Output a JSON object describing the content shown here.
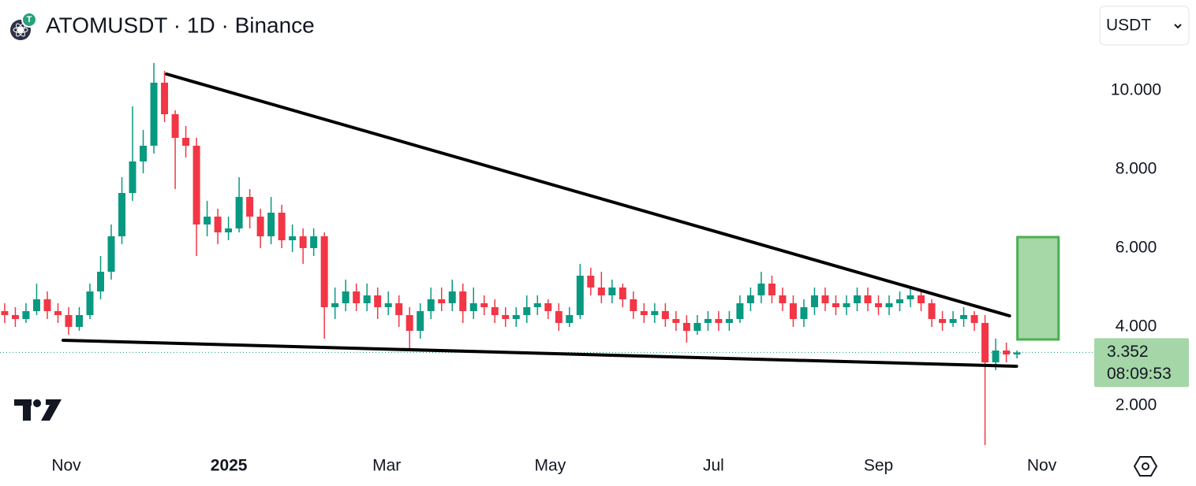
{
  "chart_data": {
    "type": "candlestick",
    "title": "ATOMUSDT · 1D · Binance",
    "currency": "USDT",
    "up_color": "#089981",
    "down_color": "#f23645",
    "open": [
      4.4,
      4.3,
      4.2,
      4.4,
      4.7,
      4.4,
      4.3,
      4.0,
      4.3,
      4.9,
      5.4,
      6.3,
      7.4,
      8.2,
      8.6,
      10.2,
      9.4,
      8.8,
      8.6,
      6.6,
      6.8,
      6.4,
      6.5,
      7.3,
      6.8,
      6.3,
      6.9,
      6.2,
      6.3,
      6.0,
      6.3,
      4.5,
      4.6,
      4.9,
      4.6,
      4.8,
      4.5,
      4.6,
      4.3,
      3.9,
      4.4,
      4.7,
      4.6,
      4.9,
      4.4,
      4.6,
      4.5,
      4.3,
      4.2,
      4.3,
      4.5,
      4.6,
      4.4,
      4.1,
      4.3,
      5.3,
      5.0,
      4.8,
      5.0,
      4.7,
      4.4,
      4.3,
      4.4,
      4.2,
      4.1,
      3.9,
      4.1,
      4.2,
      4.1,
      4.2,
      4.6,
      4.8,
      5.1,
      4.8,
      4.6,
      4.2,
      4.5,
      4.8,
      4.6,
      4.5,
      4.6,
      4.8,
      4.6,
      4.5,
      4.6,
      4.7,
      4.8,
      4.6,
      4.2,
      4.1,
      4.2,
      4.3,
      4.1,
      3.1,
      3.4,
      3.3
    ],
    "high": [
      4.6,
      4.5,
      4.6,
      5.1,
      4.9,
      4.6,
      4.5,
      4.5,
      5.1,
      5.8,
      6.6,
      7.8,
      9.6,
      9.0,
      10.7,
      10.5,
      9.5,
      9.1,
      8.8,
      7.2,
      7.0,
      6.8,
      7.8,
      7.5,
      7.0,
      7.3,
      7.1,
      6.6,
      6.5,
      6.5,
      6.4,
      5.0,
      5.2,
      5.1,
      5.1,
      5.0,
      4.9,
      4.8,
      4.5,
      4.6,
      5.0,
      5.0,
      5.2,
      5.1,
      5.0,
      4.8,
      4.7,
      4.5,
      4.5,
      4.8,
      4.8,
      4.7,
      4.6,
      4.5,
      5.6,
      5.5,
      5.4,
      5.2,
      5.1,
      4.9,
      4.6,
      4.6,
      4.6,
      4.4,
      4.3,
      4.3,
      4.4,
      4.4,
      4.4,
      4.8,
      5.0,
      5.4,
      5.3,
      5.0,
      4.8,
      4.7,
      5.0,
      5.0,
      4.8,
      4.8,
      5.0,
      5.0,
      4.8,
      4.8,
      4.9,
      5.0,
      4.9,
      4.7,
      4.4,
      4.4,
      4.5,
      4.4,
      4.3,
      3.7,
      3.6,
      3.4
    ],
    "low": [
      4.1,
      4.0,
      4.1,
      4.3,
      4.2,
      4.1,
      3.8,
      3.9,
      4.2,
      4.7,
      5.2,
      6.1,
      7.2,
      7.9,
      8.4,
      9.2,
      7.5,
      8.3,
      5.8,
      6.3,
      6.1,
      6.2,
      6.4,
      6.5,
      6.0,
      6.1,
      6.0,
      5.9,
      5.6,
      5.8,
      3.7,
      4.2,
      4.4,
      4.4,
      4.4,
      4.2,
      4.3,
      4.0,
      3.4,
      3.7,
      4.2,
      4.4,
      4.4,
      4.1,
      4.2,
      4.3,
      4.1,
      4.0,
      4.0,
      4.1,
      4.3,
      4.2,
      3.9,
      4.0,
      4.2,
      4.8,
      4.6,
      4.6,
      4.5,
      4.2,
      4.1,
      4.1,
      4.0,
      3.9,
      3.6,
      3.8,
      3.9,
      3.9,
      3.9,
      4.1,
      4.4,
      4.6,
      4.6,
      4.4,
      4.0,
      4.0,
      4.3,
      4.4,
      4.3,
      4.3,
      4.4,
      4.4,
      4.3,
      4.3,
      4.4,
      4.5,
      4.4,
      4.0,
      3.9,
      4.0,
      4.0,
      3.9,
      1.0,
      2.9,
      3.1,
      3.2
    ],
    "close": [
      4.3,
      4.2,
      4.4,
      4.7,
      4.4,
      4.3,
      4.0,
      4.3,
      4.9,
      5.4,
      6.3,
      7.4,
      8.2,
      8.6,
      10.2,
      9.4,
      8.8,
      8.6,
      6.6,
      6.8,
      6.4,
      6.5,
      7.3,
      6.8,
      6.3,
      6.9,
      6.2,
      6.3,
      6.0,
      6.3,
      4.5,
      4.6,
      4.9,
      4.6,
      4.8,
      4.5,
      4.6,
      4.3,
      3.9,
      4.4,
      4.7,
      4.6,
      4.9,
      4.4,
      4.6,
      4.5,
      4.3,
      4.2,
      4.3,
      4.5,
      4.6,
      4.4,
      4.1,
      4.3,
      5.3,
      5.0,
      4.8,
      5.0,
      4.7,
      4.4,
      4.3,
      4.4,
      4.2,
      4.1,
      3.9,
      4.1,
      4.2,
      4.1,
      4.2,
      4.6,
      4.8,
      5.1,
      4.8,
      4.6,
      4.2,
      4.5,
      4.8,
      4.6,
      4.5,
      4.6,
      4.8,
      4.6,
      4.5,
      4.6,
      4.7,
      4.8,
      4.6,
      4.2,
      4.1,
      4.2,
      4.3,
      4.1,
      3.1,
      3.4,
      3.3,
      3.352
    ],
    "xlim": [
      -0.44,
      102.1
    ],
    "xticks": [
      {
        "value": 5.78,
        "label": "Nov"
      },
      {
        "value": 21.04,
        "label": "2025"
      },
      {
        "value": 35.85,
        "label": "Mar"
      },
      {
        "value": 51.19,
        "label": "May"
      },
      {
        "value": 66.52,
        "label": "Jul"
      },
      {
        "value": 82.0,
        "label": "Sep"
      },
      {
        "value": 97.33,
        "label": "Nov"
      }
    ],
    "ylim": [
      0.9,
      11.1
    ],
    "yticks": [
      {
        "value": 2,
        "label": "2.000"
      },
      {
        "value": 4,
        "label": "4.000"
      },
      {
        "value": 6,
        "label": "6.000"
      },
      {
        "value": 8,
        "label": "8.000"
      },
      {
        "value": 10,
        "label": "10.000"
      }
    ],
    "last_price": {
      "value": 3.352,
      "label": "3.352"
    },
    "countdown": "08:09:53",
    "trendlines": [
      {
        "x": [
          15.19,
          94.3
        ],
        "y": [
          10.42,
          4.28
        ]
      },
      {
        "x": [
          5.48,
          94.96
        ],
        "y": [
          3.66,
          3.0
        ]
      }
    ],
    "target_box": {
      "x": [
        95.04,
        98.9
      ],
      "y": [
        3.68,
        6.28
      ]
    }
  }
}
